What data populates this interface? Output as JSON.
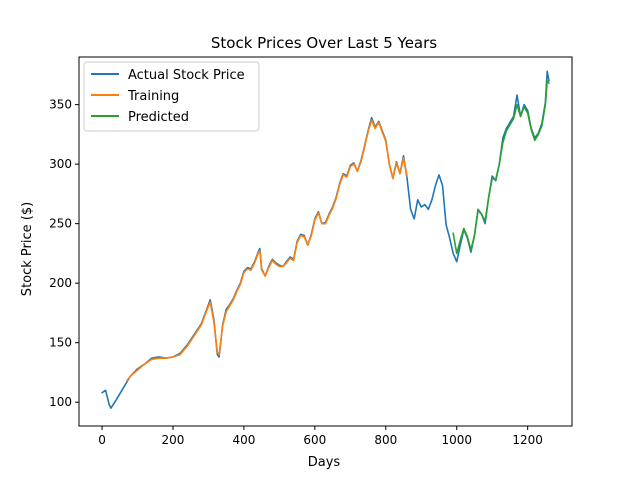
{
  "chart_data": {
    "type": "line",
    "title": "Stock Prices Over Last 5 Years",
    "xlabel": "Days",
    "ylabel": "Stock Price ($)",
    "xlim": [
      -65,
      1325
    ],
    "ylim": [
      80,
      390
    ],
    "xticks": [
      0,
      200,
      400,
      600,
      800,
      1000,
      1200
    ],
    "yticks": [
      100,
      150,
      200,
      250,
      300,
      350
    ],
    "grid": false,
    "legend_position": "top-left",
    "series": [
      {
        "name": "Actual Stock Price",
        "color": "#1f77b4",
        "points": [
          [
            0,
            108
          ],
          [
            10,
            110
          ],
          [
            20,
            98
          ],
          [
            25,
            95
          ],
          [
            40,
            102
          ],
          [
            60,
            112
          ],
          [
            80,
            122
          ],
          [
            100,
            128
          ],
          [
            120,
            132
          ],
          [
            140,
            137
          ],
          [
            160,
            138
          ],
          [
            180,
            137
          ],
          [
            200,
            138
          ],
          [
            220,
            141
          ],
          [
            240,
            148
          ],
          [
            260,
            157
          ],
          [
            280,
            166
          ],
          [
            295,
            178
          ],
          [
            305,
            186
          ],
          [
            315,
            170
          ],
          [
            325,
            140
          ],
          [
            330,
            138
          ],
          [
            340,
            165
          ],
          [
            350,
            178
          ],
          [
            360,
            182
          ],
          [
            370,
            187
          ],
          [
            380,
            194
          ],
          [
            390,
            200
          ],
          [
            400,
            210
          ],
          [
            410,
            213
          ],
          [
            420,
            212
          ],
          [
            430,
            218
          ],
          [
            440,
            226
          ],
          [
            445,
            229
          ],
          [
            450,
            212
          ],
          [
            460,
            206
          ],
          [
            470,
            214
          ],
          [
            480,
            220
          ],
          [
            490,
            217
          ],
          [
            500,
            215
          ],
          [
            510,
            214
          ],
          [
            520,
            218
          ],
          [
            530,
            222
          ],
          [
            540,
            220
          ],
          [
            550,
            235
          ],
          [
            560,
            241
          ],
          [
            570,
            240
          ],
          [
            580,
            232
          ],
          [
            590,
            241
          ],
          [
            600,
            254
          ],
          [
            610,
            260
          ],
          [
            620,
            250
          ],
          [
            630,
            251
          ],
          [
            640,
            258
          ],
          [
            650,
            264
          ],
          [
            660,
            272
          ],
          [
            670,
            284
          ],
          [
            680,
            292
          ],
          [
            690,
            290
          ],
          [
            700,
            299
          ],
          [
            710,
            301
          ],
          [
            720,
            294
          ],
          [
            730,
            303
          ],
          [
            740,
            315
          ],
          [
            750,
            328
          ],
          [
            760,
            339
          ],
          [
            770,
            331
          ],
          [
            780,
            336
          ],
          [
            790,
            328
          ],
          [
            800,
            320
          ],
          [
            810,
            300
          ],
          [
            820,
            288
          ],
          [
            830,
            302
          ],
          [
            840,
            292
          ],
          [
            850,
            307
          ],
          [
            860,
            288
          ],
          [
            870,
            262
          ],
          [
            880,
            254
          ],
          [
            890,
            270
          ],
          [
            900,
            264
          ],
          [
            910,
            266
          ],
          [
            920,
            262
          ],
          [
            930,
            270
          ],
          [
            940,
            282
          ],
          [
            950,
            291
          ],
          [
            960,
            282
          ],
          [
            970,
            249
          ],
          [
            980,
            238
          ],
          [
            990,
            225
          ],
          [
            1000,
            218
          ],
          [
            1010,
            232
          ],
          [
            1020,
            245
          ],
          [
            1030,
            238
          ],
          [
            1040,
            226
          ],
          [
            1050,
            240
          ],
          [
            1060,
            262
          ],
          [
            1070,
            258
          ],
          [
            1080,
            250
          ],
          [
            1090,
            272
          ],
          [
            1100,
            290
          ],
          [
            1110,
            286
          ],
          [
            1120,
            300
          ],
          [
            1130,
            322
          ],
          [
            1140,
            330
          ],
          [
            1150,
            335
          ],
          [
            1160,
            340
          ],
          [
            1170,
            358
          ],
          [
            1180,
            340
          ],
          [
            1190,
            350
          ],
          [
            1200,
            345
          ],
          [
            1210,
            330
          ],
          [
            1220,
            322
          ],
          [
            1230,
            326
          ],
          [
            1240,
            334
          ],
          [
            1250,
            352
          ],
          [
            1255,
            378
          ],
          [
            1260,
            370
          ]
        ]
      },
      {
        "name": "Training",
        "color": "#ff7f0e",
        "points": [
          [
            70,
            118
          ],
          [
            80,
            122
          ],
          [
            100,
            127
          ],
          [
            120,
            132
          ],
          [
            140,
            136
          ],
          [
            160,
            137
          ],
          [
            180,
            137
          ],
          [
            200,
            138
          ],
          [
            220,
            140
          ],
          [
            240,
            147
          ],
          [
            260,
            156
          ],
          [
            280,
            165
          ],
          [
            295,
            177
          ],
          [
            305,
            184
          ],
          [
            315,
            168
          ],
          [
            325,
            142
          ],
          [
            330,
            140
          ],
          [
            340,
            164
          ],
          [
            350,
            176
          ],
          [
            360,
            181
          ],
          [
            370,
            186
          ],
          [
            380,
            193
          ],
          [
            390,
            199
          ],
          [
            400,
            209
          ],
          [
            410,
            212
          ],
          [
            420,
            211
          ],
          [
            430,
            217
          ],
          [
            440,
            225
          ],
          [
            445,
            227
          ],
          [
            450,
            211
          ],
          [
            460,
            206
          ],
          [
            470,
            213
          ],
          [
            480,
            219
          ],
          [
            490,
            216
          ],
          [
            500,
            214
          ],
          [
            510,
            214
          ],
          [
            520,
            217
          ],
          [
            530,
            221
          ],
          [
            540,
            219
          ],
          [
            550,
            234
          ],
          [
            560,
            240
          ],
          [
            570,
            239
          ],
          [
            580,
            232
          ],
          [
            590,
            240
          ],
          [
            600,
            253
          ],
          [
            610,
            259
          ],
          [
            620,
            250
          ],
          [
            630,
            250
          ],
          [
            640,
            257
          ],
          [
            650,
            263
          ],
          [
            660,
            271
          ],
          [
            670,
            283
          ],
          [
            680,
            291
          ],
          [
            690,
            289
          ],
          [
            700,
            298
          ],
          [
            710,
            300
          ],
          [
            720,
            294
          ],
          [
            730,
            302
          ],
          [
            740,
            314
          ],
          [
            750,
            327
          ],
          [
            760,
            337
          ],
          [
            770,
            330
          ],
          [
            780,
            335
          ],
          [
            790,
            327
          ],
          [
            800,
            319
          ],
          [
            810,
            300
          ],
          [
            820,
            288
          ],
          [
            830,
            301
          ],
          [
            840,
            292
          ],
          [
            850,
            305
          ],
          [
            860,
            290
          ]
        ]
      },
      {
        "name": "Predicted",
        "color": "#2ca02c",
        "points": [
          [
            990,
            242
          ],
          [
            1000,
            225
          ],
          [
            1010,
            236
          ],
          [
            1020,
            246
          ],
          [
            1030,
            239
          ],
          [
            1040,
            228
          ],
          [
            1050,
            240
          ],
          [
            1060,
            261
          ],
          [
            1070,
            258
          ],
          [
            1080,
            252
          ],
          [
            1090,
            272
          ],
          [
            1100,
            288
          ],
          [
            1110,
            287
          ],
          [
            1120,
            300
          ],
          [
            1130,
            318
          ],
          [
            1140,
            328
          ],
          [
            1150,
            333
          ],
          [
            1160,
            338
          ],
          [
            1170,
            350
          ],
          [
            1180,
            340
          ],
          [
            1190,
            348
          ],
          [
            1200,
            343
          ],
          [
            1210,
            329
          ],
          [
            1220,
            320
          ],
          [
            1230,
            325
          ],
          [
            1240,
            332
          ],
          [
            1250,
            350
          ],
          [
            1255,
            370
          ],
          [
            1260,
            368
          ]
        ]
      }
    ]
  }
}
